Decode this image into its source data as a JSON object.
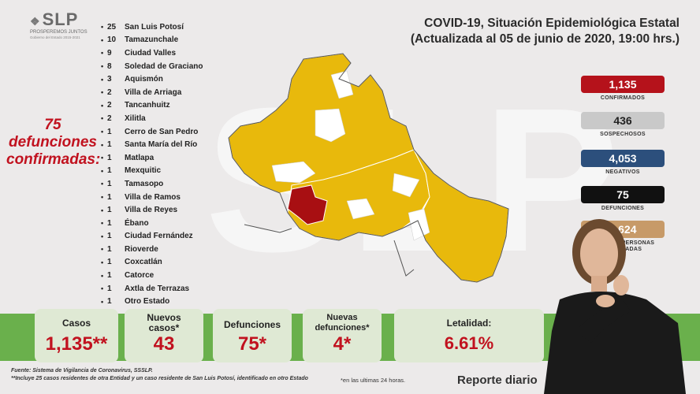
{
  "logo": {
    "mark": "SLP",
    "tagline": "PROSPEREMOS JUNTOS",
    "subline": "Gobierno del Estado 2015-2021"
  },
  "title": {
    "line1": "COVID-19, Situación Epidemiológica Estatal",
    "line2": "(Actualizada al 05 de junio de 2020, 19:00 hrs.)"
  },
  "deaths_text": {
    "line1": "75",
    "line2": "defunciones",
    "line3": "confirmadas:"
  },
  "municipalities": [
    {
      "count": "25",
      "name": "San Luis Potosí"
    },
    {
      "count": "10",
      "name": "Tamazunchale"
    },
    {
      "count": "9",
      "name": "Ciudad Valles"
    },
    {
      "count": "8",
      "name": "Soledad de Graciano"
    },
    {
      "count": "3",
      "name": "Aquismón"
    },
    {
      "count": "2",
      "name": "Villa de Arriaga"
    },
    {
      "count": "2",
      "name": "Tancanhuitz"
    },
    {
      "count": "2",
      "name": "Xilitla"
    },
    {
      "count": "1",
      "name": "Cerro de San Pedro"
    },
    {
      "count": "1",
      "name": "Santa María del Río"
    },
    {
      "count": "1",
      "name": "Matlapa"
    },
    {
      "count": "1",
      "name": "Mexquitic"
    },
    {
      "count": "1",
      "name": "Tamasopo"
    },
    {
      "count": "1",
      "name": "Villa de Ramos"
    },
    {
      "count": "1",
      "name": "Villa de Reyes"
    },
    {
      "count": "1",
      "name": "Ébano"
    },
    {
      "count": "1",
      "name": "Ciudad Fernández"
    },
    {
      "count": "1",
      "name": "Rioverde"
    },
    {
      "count": "1",
      "name": "Coxcatlán"
    },
    {
      "count": "1",
      "name": "Catorce"
    },
    {
      "count": "1",
      "name": "Axtla de Terrazas"
    },
    {
      "count": "1",
      "name": "Otro Estado"
    }
  ],
  "stats": [
    {
      "value": "1,135",
      "label": "CONFIRMADOS",
      "bg": "#b5121b",
      "fg": "#ffffff"
    },
    {
      "value": "436",
      "label": "SOSPECHOSOS",
      "bg": "#c9c9c9",
      "fg": "#222222"
    },
    {
      "value": "4,053",
      "label": "NEGATIVOS",
      "bg": "#2c4f7c",
      "fg": "#ffffff"
    },
    {
      "value": "75",
      "label": "DEFUNCIONES",
      "bg": "#111111",
      "fg": "#ffffff"
    },
    {
      "value": "5,624",
      "label": "TOTAL DE PERSONAS ESTUDIADAS",
      "bg": "#c79a68",
      "fg": "#ffffff"
    }
  ],
  "bottom": {
    "casos_label": "Casos",
    "casos_value": "1,135**",
    "nuevos_label": "Nuevos casos*",
    "nuevos_value": "43",
    "def_label": "Defunciones",
    "def_value": "75*",
    "nuevas_def_label": "Nuevas defunciones*",
    "nuevas_def_value": "4*",
    "letalidad_label": "Letalidad:",
    "letalidad_value": "6.61%"
  },
  "footer": {
    "fuente": "Fuente: Sistema de Vigilancia de Coronavirus, SSSLP.",
    "nota": "**Incluye 25 casos residentes de otra Entidad y un caso residente de San Luis Potosí, identificado en otro Estado",
    "asterisk_note": "*en las ultimas 24 horas.",
    "reporte": "Reporte diario"
  },
  "colors": {
    "map_yellow": "#e8b90c",
    "map_red": "#a80f12",
    "accent_red": "#c1121f",
    "band_green": "#6ab04c"
  }
}
